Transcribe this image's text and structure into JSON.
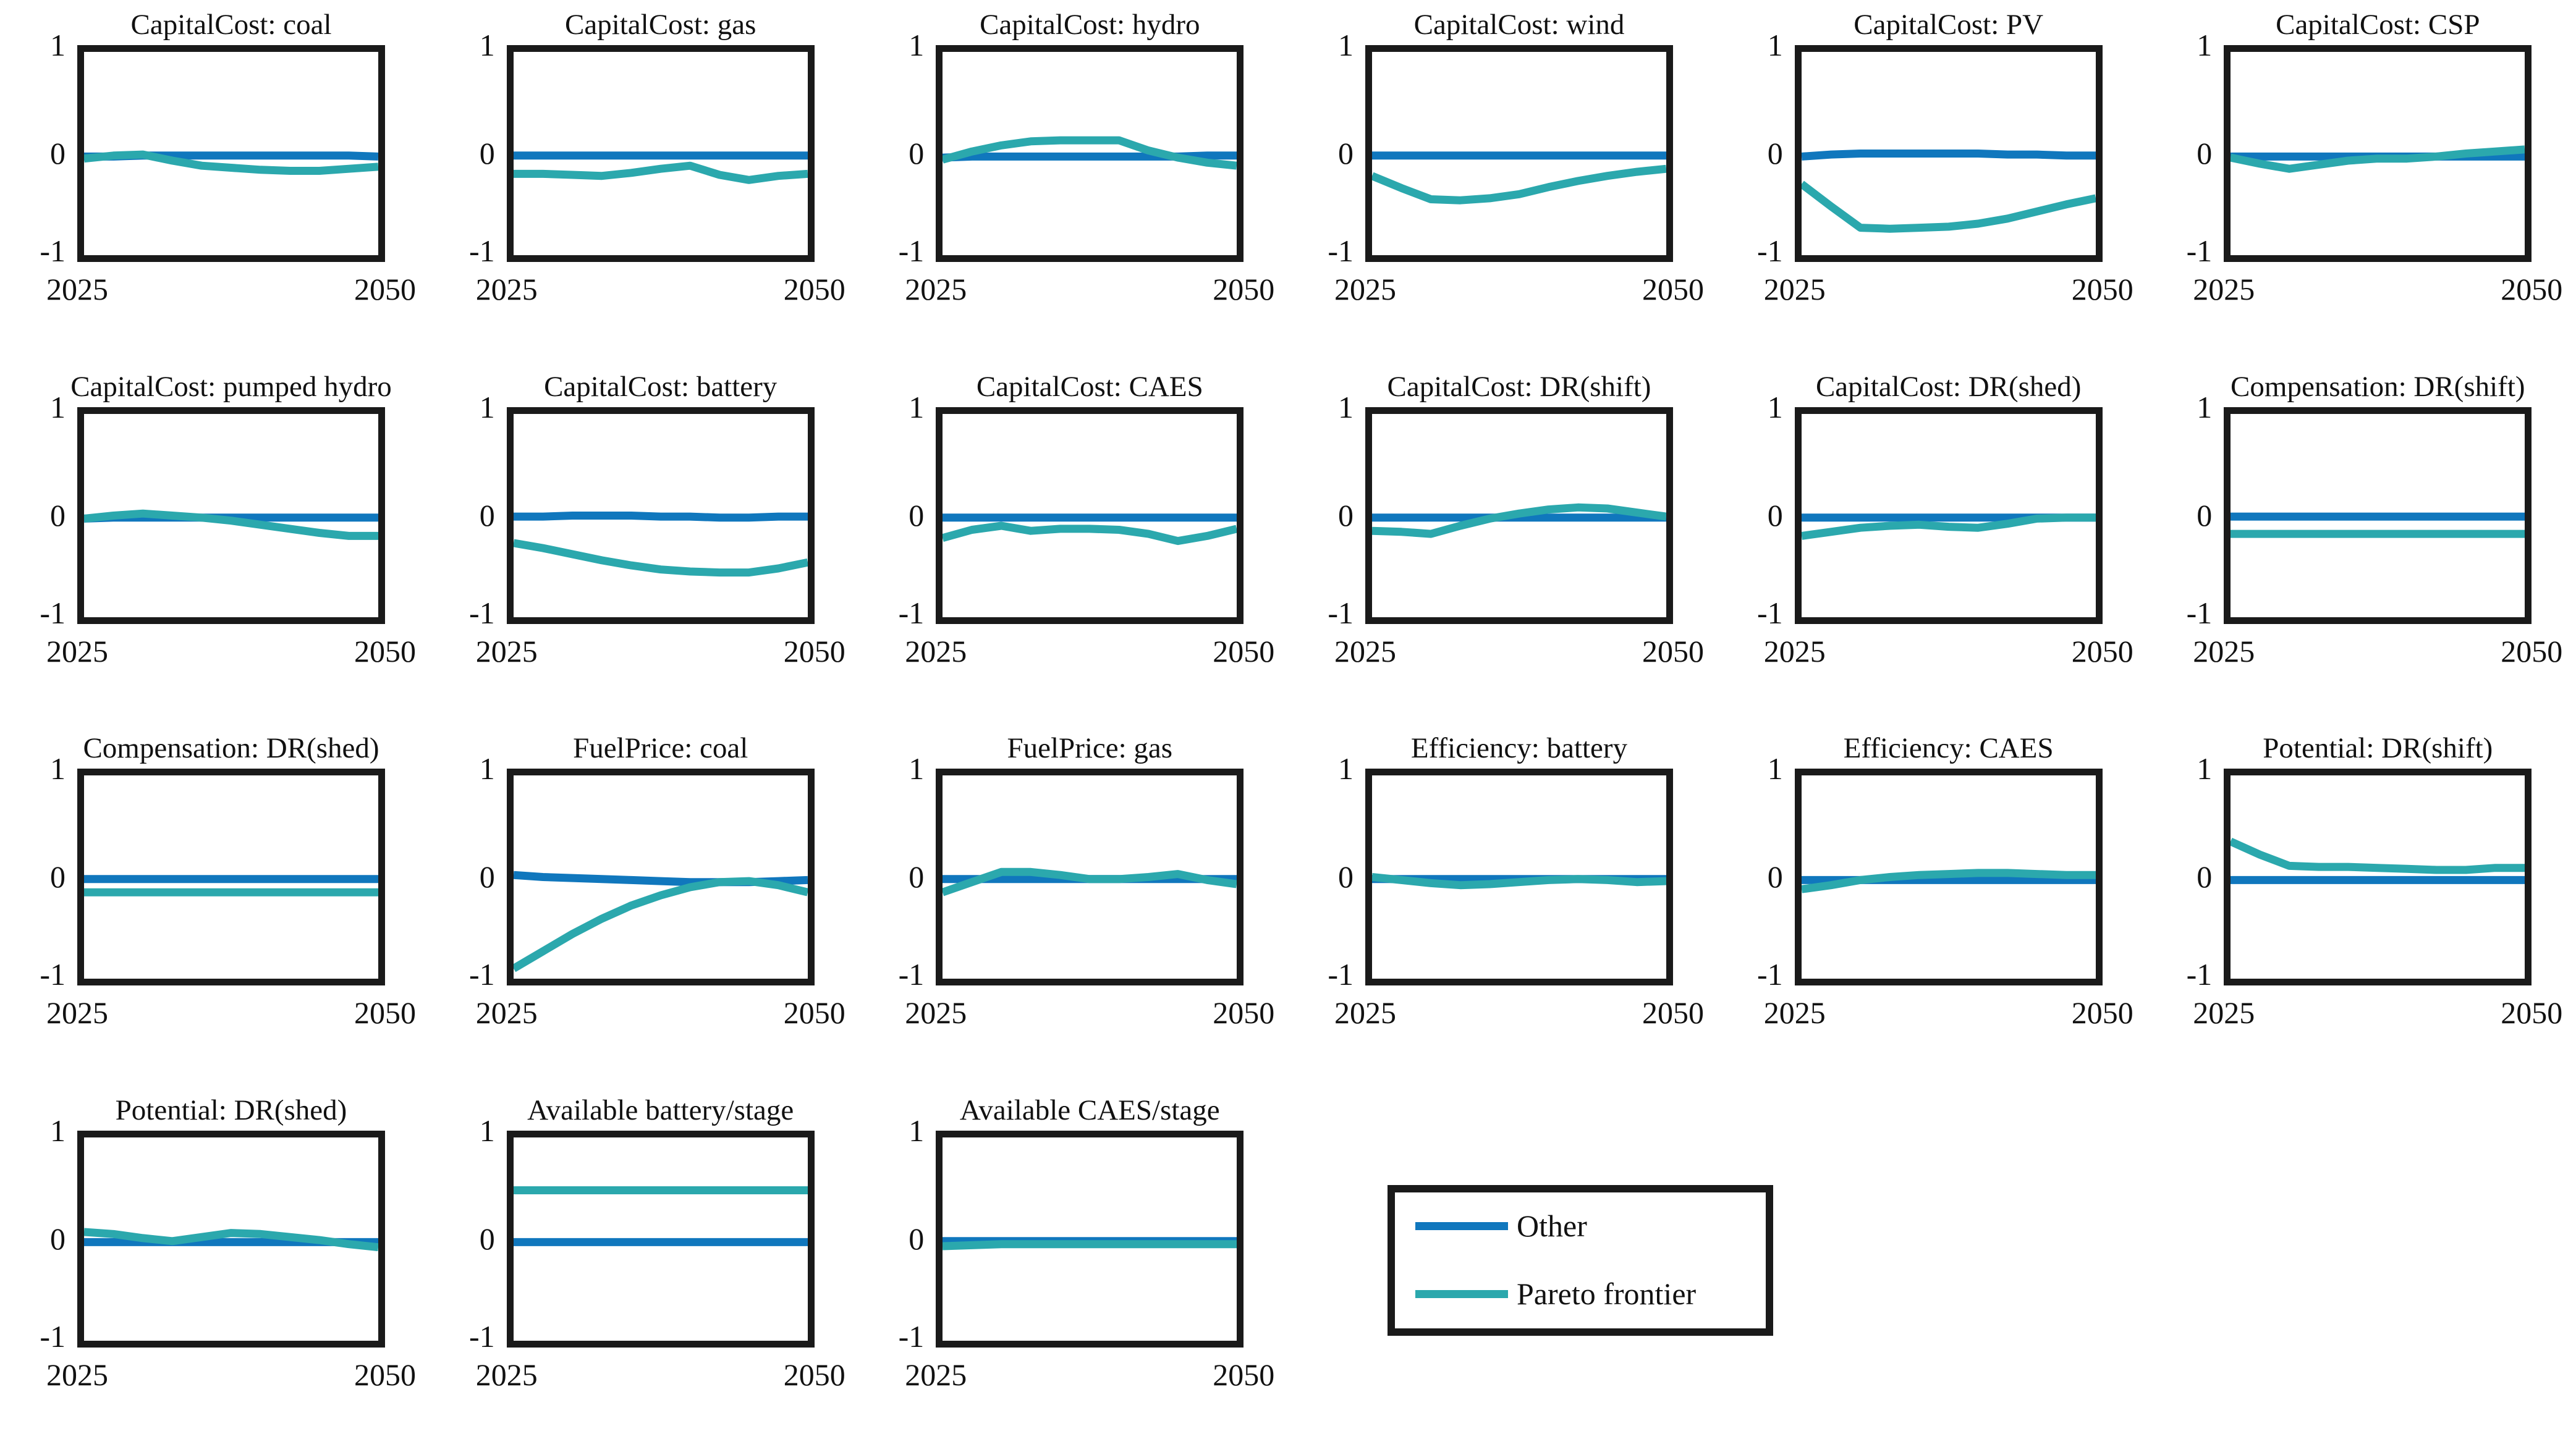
{
  "figure": {
    "y_tick_labels": [
      "1",
      "0",
      "-1"
    ],
    "x_tick_labels": [
      "2025",
      "2050"
    ],
    "colors": {
      "other": "#1077bd",
      "pareto": "#2ba8ad",
      "axis": "#1a1a1a",
      "background": "#ffffff"
    }
  },
  "legend": {
    "items": [
      {
        "label": "Other",
        "color_key": "other"
      },
      {
        "label": "Pareto frontier",
        "color_key": "pareto"
      }
    ]
  },
  "chart_data": {
    "layout": {
      "rows": 4,
      "cols": 6,
      "grid": "row-major",
      "legend_position": "row4-col4"
    },
    "shared": {
      "type": "line",
      "x": [
        2025,
        2027.5,
        2030,
        2032.5,
        2035,
        2037.5,
        2040,
        2042.5,
        2045,
        2047.5,
        2050
      ],
      "xlim": [
        2025,
        2050
      ],
      "ylim": [
        -1,
        1
      ],
      "yticks": [
        1,
        0,
        -1
      ],
      "xticks": [
        2025,
        2050
      ],
      "grid": false,
      "series_names": [
        "Other",
        "Pareto frontier"
      ]
    },
    "subplots": [
      {
        "title": "CapitalCost: coal",
        "series": [
          {
            "name": "Other",
            "values": [
              -0.03,
              -0.03,
              -0.02,
              -0.02,
              -0.02,
              -0.02,
              -0.02,
              -0.02,
              -0.02,
              -0.02,
              -0.03
            ]
          },
          {
            "name": "Pareto frontier",
            "values": [
              -0.05,
              -0.02,
              -0.01,
              -0.07,
              -0.12,
              -0.14,
              -0.16,
              -0.17,
              -0.17,
              -0.15,
              -0.13
            ]
          }
        ]
      },
      {
        "title": "CapitalCost: gas",
        "series": [
          {
            "name": "Other",
            "values": [
              -0.02,
              -0.02,
              -0.02,
              -0.02,
              -0.02,
              -0.02,
              -0.02,
              -0.02,
              -0.02,
              -0.02,
              -0.02
            ]
          },
          {
            "name": "Pareto frontier",
            "values": [
              -0.2,
              -0.2,
              -0.21,
              -0.22,
              -0.19,
              -0.15,
              -0.12,
              -0.21,
              -0.26,
              -0.22,
              -0.2
            ]
          }
        ]
      },
      {
        "title": "CapitalCost: hydro",
        "series": [
          {
            "name": "Other",
            "values": [
              -0.04,
              -0.03,
              -0.03,
              -0.03,
              -0.03,
              -0.03,
              -0.03,
              -0.03,
              -0.03,
              -0.02,
              -0.02
            ]
          },
          {
            "name": "Pareto frontier",
            "values": [
              -0.06,
              0.02,
              0.08,
              0.12,
              0.13,
              0.13,
              0.13,
              0.03,
              -0.04,
              -0.09,
              -0.12
            ]
          }
        ]
      },
      {
        "title": "CapitalCost: wind",
        "series": [
          {
            "name": "Other",
            "values": [
              -0.02,
              -0.02,
              -0.02,
              -0.02,
              -0.02,
              -0.02,
              -0.02,
              -0.02,
              -0.02,
              -0.02,
              -0.02
            ]
          },
          {
            "name": "Pareto frontier",
            "values": [
              -0.22,
              -0.34,
              -0.45,
              -0.46,
              -0.44,
              -0.4,
              -0.33,
              -0.27,
              -0.22,
              -0.18,
              -0.15
            ]
          }
        ]
      },
      {
        "title": "CapitalCost: PV",
        "series": [
          {
            "name": "Other",
            "values": [
              -0.03,
              -0.01,
              0.0,
              0.0,
              0.0,
              0.0,
              0.0,
              -0.01,
              -0.01,
              -0.02,
              -0.02
            ]
          },
          {
            "name": "Pareto frontier",
            "values": [
              -0.3,
              -0.52,
              -0.73,
              -0.74,
              -0.73,
              -0.72,
              -0.69,
              -0.64,
              -0.57,
              -0.5,
              -0.44
            ]
          }
        ]
      },
      {
        "title": "CapitalCost: CSP",
        "series": [
          {
            "name": "Other",
            "values": [
              -0.03,
              -0.03,
              -0.03,
              -0.03,
              -0.03,
              -0.03,
              -0.03,
              -0.03,
              -0.03,
              -0.03,
              -0.03
            ]
          },
          {
            "name": "Pareto frontier",
            "values": [
              -0.04,
              -0.1,
              -0.15,
              -0.11,
              -0.07,
              -0.05,
              -0.05,
              -0.03,
              0.0,
              0.02,
              0.04
            ]
          }
        ]
      },
      {
        "title": "CapitalCost: pumped hydro",
        "series": [
          {
            "name": "Other",
            "values": [
              -0.03,
              -0.02,
              -0.02,
              -0.02,
              -0.02,
              -0.02,
              -0.02,
              -0.02,
              -0.02,
              -0.02,
              -0.02
            ]
          },
          {
            "name": "Pareto frontier",
            "values": [
              -0.03,
              0.0,
              0.02,
              0.0,
              -0.02,
              -0.05,
              -0.09,
              -0.13,
              -0.17,
              -0.2,
              -0.2
            ]
          }
        ]
      },
      {
        "title": "CapitalCost: battery",
        "series": [
          {
            "name": "Other",
            "values": [
              -0.01,
              -0.01,
              0.0,
              0.0,
              0.0,
              -0.01,
              -0.01,
              -0.02,
              -0.02,
              -0.01,
              -0.01
            ]
          },
          {
            "name": "Pareto frontier",
            "values": [
              -0.27,
              -0.32,
              -0.38,
              -0.44,
              -0.49,
              -0.53,
              -0.55,
              -0.56,
              -0.56,
              -0.52,
              -0.46
            ]
          }
        ]
      },
      {
        "title": "CapitalCost: CAES",
        "series": [
          {
            "name": "Other",
            "values": [
              -0.02,
              -0.02,
              -0.02,
              -0.02,
              -0.02,
              -0.02,
              -0.02,
              -0.02,
              -0.02,
              -0.02,
              -0.02
            ]
          },
          {
            "name": "Pareto frontier",
            "values": [
              -0.22,
              -0.14,
              -0.1,
              -0.15,
              -0.13,
              -0.13,
              -0.14,
              -0.18,
              -0.25,
              -0.2,
              -0.13
            ]
          }
        ]
      },
      {
        "title": "CapitalCost: DR(shift)",
        "series": [
          {
            "name": "Other",
            "values": [
              -0.02,
              -0.02,
              -0.02,
              -0.02,
              -0.02,
              -0.02,
              -0.02,
              -0.02,
              -0.02,
              -0.02,
              -0.02
            ]
          },
          {
            "name": "Pareto frontier",
            "values": [
              -0.15,
              -0.16,
              -0.18,
              -0.1,
              -0.03,
              0.02,
              0.06,
              0.08,
              0.07,
              0.03,
              -0.01
            ]
          }
        ]
      },
      {
        "title": "CapitalCost: DR(shed)",
        "series": [
          {
            "name": "Other",
            "values": [
              -0.02,
              -0.02,
              -0.02,
              -0.02,
              -0.02,
              -0.02,
              -0.02,
              -0.02,
              -0.02,
              -0.02,
              -0.02
            ]
          },
          {
            "name": "Pareto frontier",
            "values": [
              -0.2,
              -0.16,
              -0.12,
              -0.1,
              -0.09,
              -0.11,
              -0.12,
              -0.08,
              -0.03,
              -0.02,
              -0.02
            ]
          }
        ]
      },
      {
        "title": "Compensation: DR(shift)",
        "series": [
          {
            "name": "Other",
            "values": [
              -0.01,
              -0.01,
              -0.01,
              -0.01,
              -0.01,
              -0.01,
              -0.01,
              -0.01,
              -0.01,
              -0.01,
              -0.01
            ]
          },
          {
            "name": "Pareto frontier",
            "values": [
              -0.18,
              -0.18,
              -0.18,
              -0.18,
              -0.18,
              -0.18,
              -0.18,
              -0.18,
              -0.18,
              -0.18,
              -0.18
            ]
          }
        ]
      },
      {
        "title": "Compensation: DR(shed)",
        "series": [
          {
            "name": "Other",
            "values": [
              -0.02,
              -0.02,
              -0.02,
              -0.02,
              -0.02,
              -0.02,
              -0.02,
              -0.02,
              -0.02,
              -0.02,
              -0.02
            ]
          },
          {
            "name": "Pareto frontier",
            "values": [
              -0.15,
              -0.15,
              -0.15,
              -0.15,
              -0.15,
              -0.15,
              -0.15,
              -0.15,
              -0.15,
              -0.15,
              -0.15
            ]
          }
        ]
      },
      {
        "title": "FuelPrice: coal",
        "series": [
          {
            "name": "Other",
            "values": [
              0.02,
              0.0,
              -0.01,
              -0.02,
              -0.03,
              -0.04,
              -0.05,
              -0.05,
              -0.05,
              -0.04,
              -0.03
            ]
          },
          {
            "name": "Pareto frontier",
            "values": [
              -0.9,
              -0.73,
              -0.56,
              -0.41,
              -0.28,
              -0.18,
              -0.1,
              -0.05,
              -0.04,
              -0.08,
              -0.15
            ]
          }
        ]
      },
      {
        "title": "FuelPrice: gas",
        "series": [
          {
            "name": "Other",
            "values": [
              -0.02,
              -0.02,
              -0.02,
              -0.02,
              -0.02,
              -0.02,
              -0.02,
              -0.02,
              -0.02,
              -0.02,
              -0.02
            ]
          },
          {
            "name": "Pareto frontier",
            "values": [
              -0.15,
              -0.05,
              0.05,
              0.05,
              0.02,
              -0.02,
              -0.02,
              0.0,
              0.03,
              -0.03,
              -0.07
            ]
          }
        ]
      },
      {
        "title": "Efficiency: battery",
        "series": [
          {
            "name": "Other",
            "values": [
              -0.02,
              -0.02,
              -0.02,
              -0.02,
              -0.02,
              -0.02,
              -0.02,
              -0.02,
              -0.02,
              -0.02,
              -0.02
            ]
          },
          {
            "name": "Pareto frontier",
            "values": [
              0.0,
              -0.03,
              -0.06,
              -0.08,
              -0.07,
              -0.05,
              -0.03,
              -0.02,
              -0.03,
              -0.05,
              -0.04
            ]
          }
        ]
      },
      {
        "title": "Efficiency: CAES",
        "series": [
          {
            "name": "Other",
            "values": [
              -0.03,
              -0.03,
              -0.03,
              -0.03,
              -0.03,
              -0.03,
              -0.03,
              -0.03,
              -0.03,
              -0.03,
              -0.03
            ]
          },
          {
            "name": "Pareto frontier",
            "values": [
              -0.12,
              -0.08,
              -0.03,
              0.0,
              0.02,
              0.03,
              0.04,
              0.04,
              0.03,
              0.02,
              0.02
            ]
          }
        ]
      },
      {
        "title": "Potential: DR(shift)",
        "series": [
          {
            "name": "Other",
            "values": [
              -0.03,
              -0.03,
              -0.03,
              -0.03,
              -0.03,
              -0.03,
              -0.03,
              -0.03,
              -0.03,
              -0.03,
              -0.03
            ]
          },
          {
            "name": "Pareto frontier",
            "values": [
              0.35,
              0.22,
              0.11,
              0.1,
              0.1,
              0.09,
              0.08,
              0.07,
              0.07,
              0.09,
              0.09
            ]
          }
        ]
      },
      {
        "title": "Potential: DR(shed)",
        "series": [
          {
            "name": "Other",
            "values": [
              -0.03,
              -0.03,
              -0.03,
              -0.03,
              -0.03,
              -0.03,
              -0.03,
              -0.03,
              -0.03,
              -0.03,
              -0.03
            ]
          },
          {
            "name": "Pareto frontier",
            "values": [
              0.07,
              0.05,
              0.01,
              -0.02,
              0.02,
              0.06,
              0.05,
              0.02,
              -0.01,
              -0.05,
              -0.08
            ]
          }
        ]
      },
      {
        "title": "Available battery/stage",
        "series": [
          {
            "name": "Other",
            "values": [
              -0.03,
              -0.03,
              -0.03,
              -0.03,
              -0.03,
              -0.03,
              -0.03,
              -0.03,
              -0.03,
              -0.03,
              -0.03
            ]
          },
          {
            "name": "Pareto frontier",
            "values": [
              0.48,
              0.48,
              0.48,
              0.48,
              0.48,
              0.48,
              0.48,
              0.48,
              0.48,
              0.48,
              0.48
            ]
          }
        ]
      },
      {
        "title": "Available CAES/stage",
        "series": [
          {
            "name": "Other",
            "values": [
              -0.02,
              -0.02,
              -0.02,
              -0.02,
              -0.02,
              -0.02,
              -0.02,
              -0.02,
              -0.02,
              -0.02,
              -0.02
            ]
          },
          {
            "name": "Pareto frontier",
            "values": [
              -0.07,
              -0.06,
              -0.05,
              -0.05,
              -0.05,
              -0.05,
              -0.05,
              -0.05,
              -0.05,
              -0.05,
              -0.05
            ]
          }
        ]
      }
    ]
  }
}
